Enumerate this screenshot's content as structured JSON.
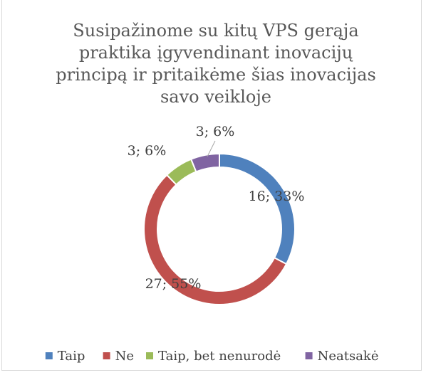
{
  "chart_data": {
    "type": "donut",
    "title": "Susipažinome su kitų VPS gerąja praktika įgyvendinant inovacijų principą ir pritaikėme šias inovacijas savo veikloje",
    "categories": [
      "Taip",
      "Ne",
      "Taip, bet nenurodė",
      "Neatsakė"
    ],
    "values": [
      16,
      27,
      3,
      3
    ],
    "value_labels": [
      "16; 33%",
      "27; 55%",
      "3; 6%",
      "3; 6%"
    ],
    "colors": [
      "#4f81bd",
      "#c0504d",
      "#9bbb59",
      "#8064a2"
    ],
    "legend": "bottom"
  }
}
